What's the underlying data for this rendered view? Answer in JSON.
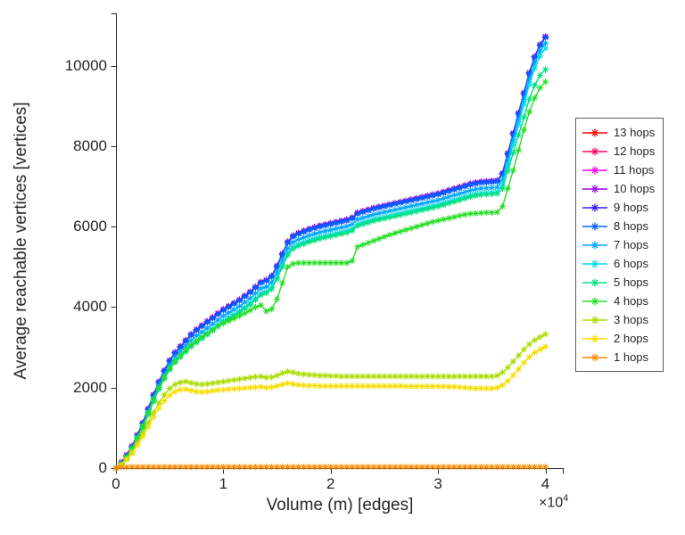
{
  "figure": {
    "background": "#ffffff",
    "axis_color": "#262626"
  },
  "chart_data": {
    "type": "line",
    "title": "",
    "xlabel": "Volume (m) [edges]",
    "ylabel": "Average reachable vertices [vertices]",
    "marker": "asterisk",
    "grid": "off",
    "legend_position": "right-outside",
    "x_axis": {
      "min": 0,
      "max": 41700,
      "ticks": [
        0,
        10000,
        20000,
        30000,
        40000
      ],
      "tick_labels": [
        "0",
        "1",
        "2",
        "3",
        "4"
      ],
      "exponent_base": "×10",
      "exponent_power": "4"
    },
    "y_axis": {
      "min": 0,
      "max": 11300,
      "ticks": [
        0,
        2000,
        4000,
        6000,
        8000,
        10000
      ],
      "tick_labels": [
        "0",
        "2000",
        "4000",
        "6000",
        "8000",
        "10000"
      ]
    },
    "x_grid": {
      "start": 0,
      "step": 500,
      "count": 81
    },
    "series": [
      {
        "name": "13 hops",
        "color": "#ff0000",
        "y": [
          0,
          145,
          325,
          545,
          825,
          1125,
          1475,
          1825,
          2145,
          2425,
          2675,
          2875,
          3025,
          3175,
          3325,
          3445,
          3545,
          3645,
          3745,
          3845,
          3945,
          4025,
          4105,
          4185,
          4285,
          4385,
          4505,
          4625,
          4675,
          4775,
          5025,
          5325,
          5625,
          5775,
          5845,
          5895,
          5945,
          5985,
          6025,
          6055,
          6085,
          6115,
          6145,
          6175,
          6225,
          6345,
          6385,
          6425,
          6465,
          6495,
          6525,
          6555,
          6585,
          6615,
          6645,
          6675,
          6705,
          6735,
          6765,
          6795,
          6825,
          6865,
          6905,
          6945,
          6985,
          7025,
          7065,
          7095,
          7115,
          7125,
          7135,
          7145,
          7325,
          7825,
          8325,
          8825,
          9325,
          9825,
          10225,
          10525,
          10725
        ]
      },
      {
        "name": "12 hops",
        "color": "#ff0066",
        "y": [
          0,
          145,
          325,
          545,
          825,
          1125,
          1475,
          1825,
          2145,
          2425,
          2675,
          2875,
          3025,
          3175,
          3325,
          3445,
          3545,
          3645,
          3745,
          3845,
          3945,
          4025,
          4105,
          4185,
          4285,
          4385,
          4505,
          4625,
          4675,
          4775,
          5025,
          5325,
          5625,
          5775,
          5845,
          5895,
          5945,
          5985,
          6025,
          6055,
          6085,
          6115,
          6145,
          6175,
          6225,
          6345,
          6385,
          6425,
          6465,
          6495,
          6525,
          6555,
          6585,
          6615,
          6645,
          6675,
          6705,
          6735,
          6765,
          6795,
          6825,
          6865,
          6905,
          6945,
          6985,
          7025,
          7065,
          7095,
          7115,
          7125,
          7135,
          7145,
          7325,
          7825,
          8325,
          8825,
          9325,
          9825,
          10225,
          10525,
          10725
        ]
      },
      {
        "name": "11 hops",
        "color": "#f400f4",
        "y": [
          0,
          145,
          325,
          545,
          825,
          1125,
          1475,
          1825,
          2145,
          2425,
          2675,
          2875,
          3025,
          3175,
          3325,
          3445,
          3545,
          3645,
          3745,
          3845,
          3945,
          4025,
          4105,
          4185,
          4285,
          4385,
          4505,
          4625,
          4675,
          4775,
          5025,
          5325,
          5625,
          5775,
          5845,
          5895,
          5945,
          5985,
          6025,
          6055,
          6085,
          6115,
          6145,
          6175,
          6225,
          6345,
          6385,
          6425,
          6465,
          6495,
          6525,
          6555,
          6585,
          6615,
          6645,
          6675,
          6705,
          6735,
          6765,
          6795,
          6825,
          6865,
          6905,
          6945,
          6985,
          7025,
          7065,
          7095,
          7115,
          7125,
          7135,
          7145,
          7325,
          7825,
          8325,
          8825,
          9325,
          9825,
          10225,
          10525,
          10725
        ]
      },
      {
        "name": "10 hops",
        "color": "#a000f0",
        "y": [
          0,
          145,
          325,
          545,
          825,
          1125,
          1475,
          1825,
          2145,
          2425,
          2675,
          2875,
          3025,
          3175,
          3325,
          3445,
          3545,
          3645,
          3745,
          3845,
          3945,
          4025,
          4105,
          4185,
          4285,
          4385,
          4505,
          4625,
          4675,
          4775,
          5025,
          5325,
          5625,
          5775,
          5845,
          5895,
          5945,
          5985,
          6025,
          6055,
          6085,
          6115,
          6145,
          6175,
          6225,
          6345,
          6385,
          6425,
          6465,
          6495,
          6525,
          6555,
          6585,
          6615,
          6645,
          6675,
          6705,
          6735,
          6765,
          6795,
          6825,
          6865,
          6905,
          6945,
          6985,
          7025,
          7065,
          7095,
          7115,
          7125,
          7135,
          7145,
          7325,
          7825,
          8325,
          8825,
          9325,
          9825,
          10225,
          10525,
          10725
        ]
      },
      {
        "name": "9 hops",
        "color": "#3318ff",
        "y": [
          0,
          130,
          310,
          530,
          810,
          1110,
          1460,
          1810,
          2130,
          2410,
          2660,
          2860,
          3010,
          3160,
          3310,
          3430,
          3530,
          3630,
          3730,
          3830,
          3930,
          4010,
          4090,
          4170,
          4270,
          4370,
          4490,
          4610,
          4660,
          4760,
          5010,
          5310,
          5610,
          5760,
          5830,
          5880,
          5930,
          5970,
          6010,
          6040,
          6070,
          6100,
          6130,
          6160,
          6210,
          6330,
          6370,
          6410,
          6450,
          6480,
          6510,
          6540,
          6570,
          6600,
          6630,
          6660,
          6690,
          6720,
          6750,
          6780,
          6810,
          6850,
          6890,
          6930,
          6970,
          7010,
          7050,
          7080,
          7100,
          7110,
          7120,
          7130,
          7310,
          7810,
          8310,
          8810,
          9310,
          9810,
          10210,
          10510,
          10710
        ]
      },
      {
        "name": "8 hops",
        "color": "#0062ff",
        "y": [
          0,
          120,
          300,
          520,
          800,
          1100,
          1450,
          1800,
          2120,
          2400,
          2650,
          2850,
          3000,
          3150,
          3300,
          3420,
          3520,
          3620,
          3720,
          3820,
          3920,
          4000,
          4080,
          4160,
          4260,
          4360,
          4480,
          4600,
          4650,
          4750,
          5000,
          5300,
          5600,
          5750,
          5820,
          5870,
          5920,
          5960,
          6000,
          6030,
          6060,
          6090,
          6120,
          6150,
          6200,
          6320,
          6360,
          6400,
          6440,
          6470,
          6500,
          6530,
          6560,
          6590,
          6620,
          6650,
          6680,
          6710,
          6740,
          6770,
          6800,
          6840,
          6880,
          6920,
          6960,
          7000,
          7040,
          7070,
          7090,
          7100,
          7110,
          7120,
          7300,
          7800,
          8300,
          8800,
          9300,
          9800,
          10200,
          10500,
          10700
        ]
      },
      {
        "name": "7 hops",
        "color": "#00a5ff",
        "y": [
          0,
          110,
          280,
          495,
          765,
          1055,
          1395,
          1740,
          2050,
          2320,
          2560,
          2755,
          2895,
          3035,
          3175,
          3290,
          3380,
          3480,
          3580,
          3680,
          3780,
          3860,
          3940,
          4020,
          4120,
          4220,
          4340,
          4460,
          4510,
          4610,
          4860,
          5160,
          5460,
          5610,
          5680,
          5730,
          5780,
          5820,
          5860,
          5890,
          5920,
          5950,
          5980,
          6010,
          6060,
          6180,
          6220,
          6260,
          6300,
          6330,
          6360,
          6390,
          6420,
          6450,
          6480,
          6510,
          6540,
          6570,
          6600,
          6630,
          6660,
          6700,
          6740,
          6780,
          6820,
          6860,
          6900,
          6930,
          6950,
          6960,
          6970,
          6980,
          7160,
          7660,
          8160,
          8660,
          9160,
          9660,
          10060,
          10360,
          10560
        ]
      },
      {
        "name": "6 hops",
        "color": "#00dce8",
        "y": [
          0,
          105,
          265,
          470,
          735,
          1020,
          1350,
          1685,
          1990,
          2255,
          2485,
          2670,
          2805,
          2940,
          3070,
          3175,
          3260,
          3360,
          3460,
          3560,
          3660,
          3740,
          3820,
          3900,
          4000,
          4100,
          4220,
          4340,
          4390,
          4490,
          4740,
          5040,
          5340,
          5490,
          5560,
          5610,
          5660,
          5700,
          5740,
          5770,
          5800,
          5830,
          5860,
          5890,
          5940,
          6060,
          6100,
          6140,
          6180,
          6210,
          6240,
          6270,
          6300,
          6330,
          6360,
          6390,
          6420,
          6450,
          6480,
          6510,
          6540,
          6580,
          6620,
          6660,
          6700,
          6740,
          6780,
          6810,
          6830,
          6840,
          6850,
          6860,
          7040,
          7540,
          8040,
          8540,
          9040,
          9540,
          9940,
          10240,
          10440
        ]
      },
      {
        "name": "5 hops",
        "color": "#00e080",
        "y": [
          0,
          100,
          260,
          460,
          720,
          1000,
          1330,
          1660,
          1960,
          2220,
          2450,
          2630,
          2760,
          2890,
          3020,
          3120,
          3220,
          3320,
          3420,
          3520,
          3620,
          3700,
          3780,
          3860,
          3960,
          4060,
          4180,
          4300,
          4350,
          4450,
          4700,
          5000,
          5300,
          5450,
          5520,
          5570,
          5620,
          5660,
          5700,
          5730,
          5760,
          5790,
          5820,
          5850,
          5900,
          6020,
          6060,
          6100,
          6140,
          6170,
          6200,
          6230,
          6260,
          6290,
          6320,
          6350,
          6380,
          6410,
          6440,
          6470,
          6500,
          6540,
          6580,
          6620,
          6660,
          6700,
          6740,
          6770,
          6790,
          6800,
          6810,
          6820,
          6945,
          7390,
          7835,
          8280,
          8725,
          9170,
          9515,
          9760,
          9905
        ]
      },
      {
        "name": "4 hops",
        "color": "#26de26",
        "y": [
          0,
          110,
          280,
          490,
          750,
          1040,
          1370,
          1700,
          2000,
          2260,
          2480,
          2660,
          2800,
          2930,
          3060,
          3160,
          3250,
          3340,
          3430,
          3520,
          3600,
          3660,
          3720,
          3780,
          3850,
          3920,
          4000,
          4050,
          3900,
          3950,
          4200,
          4600,
          5000,
          5080,
          5100,
          5100,
          5100,
          5100,
          5100,
          5100,
          5100,
          5100,
          5100,
          5100,
          5150,
          5500,
          5550,
          5600,
          5650,
          5700,
          5750,
          5800,
          5840,
          5880,
          5920,
          5960,
          6000,
          6040,
          6080,
          6120,
          6150,
          6180,
          6210,
          6240,
          6270,
          6300,
          6320,
          6330,
          6340,
          6350,
          6350,
          6360,
          6500,
          6950,
          7400,
          7900,
          8400,
          8850,
          9200,
          9450,
          9600
        ]
      },
      {
        "name": "3 hops",
        "color": "#aadc00",
        "y": [
          0,
          90,
          230,
          400,
          620,
          860,
          1120,
          1380,
          1620,
          1820,
          1980,
          2080,
          2130,
          2150,
          2120,
          2090,
          2080,
          2090,
          2110,
          2130,
          2150,
          2170,
          2190,
          2210,
          2230,
          2250,
          2270,
          2280,
          2250,
          2260,
          2300,
          2360,
          2400,
          2380,
          2350,
          2330,
          2320,
          2310,
          2300,
          2300,
          2290,
          2290,
          2280,
          2280,
          2280,
          2280,
          2280,
          2280,
          2280,
          2280,
          2280,
          2280,
          2280,
          2280,
          2280,
          2280,
          2280,
          2280,
          2280,
          2280,
          2280,
          2280,
          2280,
          2280,
          2280,
          2280,
          2280,
          2280,
          2280,
          2280,
          2280,
          2300,
          2380,
          2500,
          2650,
          2800,
          2950,
          3080,
          3180,
          3260,
          3330
        ]
      },
      {
        "name": "2 hops",
        "color": "#f5de00",
        "y": [
          0,
          80,
          210,
          370,
          570,
          790,
          1030,
          1270,
          1490,
          1670,
          1810,
          1900,
          1950,
          1960,
          1930,
          1900,
          1890,
          1900,
          1920,
          1940,
          1950,
          1960,
          1970,
          1980,
          1990,
          2000,
          2010,
          2020,
          2000,
          2010,
          2040,
          2080,
          2110,
          2090,
          2070,
          2060,
          2050,
          2050,
          2040,
          2040,
          2040,
          2040,
          2040,
          2040,
          2040,
          2040,
          2040,
          2040,
          2040,
          2040,
          2040,
          2040,
          2040,
          2040,
          2030,
          2030,
          2030,
          2030,
          2030,
          2030,
          2030,
          2030,
          2020,
          2020,
          2010,
          2000,
          1990,
          1980,
          1980,
          1980,
          1980,
          2000,
          2060,
          2170,
          2310,
          2460,
          2620,
          2760,
          2870,
          2950,
          3020
        ]
      },
      {
        "name": "1 hops",
        "color": "#ff8c00",
        "y": [
          0,
          25,
          30,
          32,
          32,
          32,
          32,
          32,
          32,
          32,
          32,
          32,
          32,
          32,
          32,
          32,
          32,
          32,
          32,
          32,
          32,
          32,
          32,
          32,
          32,
          32,
          32,
          32,
          32,
          32,
          32,
          32,
          32,
          32,
          32,
          32,
          32,
          32,
          32,
          32,
          32,
          32,
          32,
          32,
          32,
          32,
          32,
          32,
          32,
          32,
          32,
          32,
          32,
          32,
          32,
          32,
          32,
          32,
          32,
          32,
          32,
          32,
          32,
          32,
          32,
          32,
          32,
          32,
          32,
          32,
          32,
          32,
          32,
          32,
          32,
          32,
          32,
          32,
          32,
          32,
          32
        ]
      }
    ]
  }
}
